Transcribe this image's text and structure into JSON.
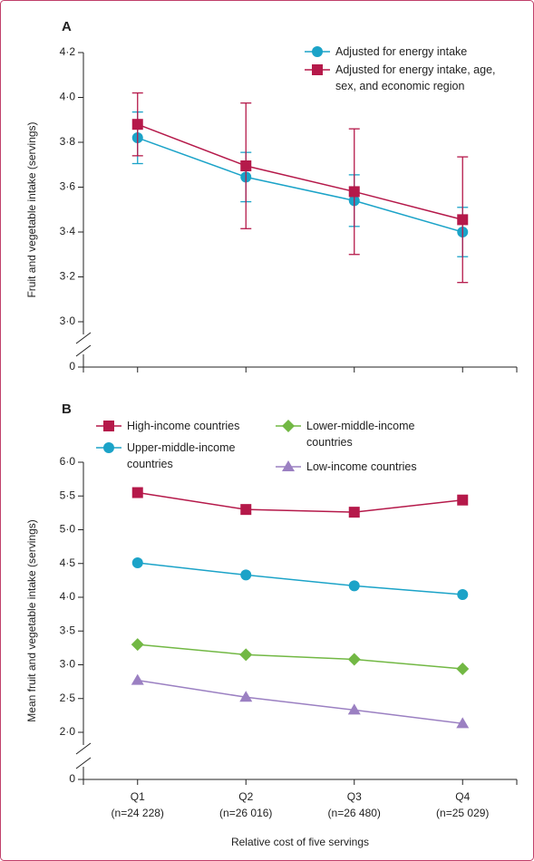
{
  "chart_data": [
    {
      "type": "line",
      "panel": "A",
      "ylabel": "Fruit and vegetable intake (servings)",
      "categories": [
        null,
        null,
        null,
        null
      ],
      "ylim": [
        0,
        4.2
      ],
      "axis_break": [
        0,
        3.0
      ],
      "yticks": [
        0,
        {
          "value": 3.0,
          "label": "3·0"
        },
        {
          "value": 3.2,
          "label": "3·2"
        },
        {
          "value": 3.4,
          "label": "3·4"
        },
        {
          "value": 3.6,
          "label": "3·6"
        },
        {
          "value": 3.8,
          "label": "3·8"
        },
        {
          "value": 4.0,
          "label": "4·0"
        },
        {
          "value": 4.2,
          "label": "4·2"
        }
      ],
      "series": [
        {
          "name": "Adjusted for energy intake",
          "color": "#1ba3c8",
          "marker": "circle",
          "values": [
            3.82,
            3.645,
            3.54,
            3.4
          ],
          "errors": [
            0.115,
            0.11,
            0.115,
            0.11
          ]
        },
        {
          "name": "Adjusted for energy intake, age, sex, and economic region",
          "color": "#b5194a",
          "marker": "square",
          "values": [
            3.88,
            3.695,
            3.58,
            3.455
          ],
          "errors": [
            0.14,
            0.28,
            0.28,
            0.28
          ]
        }
      ]
    },
    {
      "type": "line",
      "panel": "B",
      "ylabel": "Mean fruit and vegetable intake (servings)",
      "xlabel": "Relative cost of five servings",
      "categories": [
        "Q1",
        "Q2",
        "Q3",
        "Q4"
      ],
      "category_sublabels": [
        "(n=24 228)",
        "(n=26 016)",
        "(n=26 480)",
        "(n=25 029)"
      ],
      "ylim": [
        0,
        6.0
      ],
      "axis_break": [
        0,
        2.0
      ],
      "yticks": [
        0,
        {
          "value": 2.0,
          "label": "2·0"
        },
        {
          "value": 2.5,
          "label": "2·5"
        },
        {
          "value": 3.0,
          "label": "3·0"
        },
        {
          "value": 3.5,
          "label": "3·5"
        },
        {
          "value": 4.0,
          "label": "4·0"
        },
        {
          "value": 4.5,
          "label": "4·5"
        },
        {
          "value": 5.0,
          "label": "5·0"
        },
        {
          "value": 5.5,
          "label": "5·5"
        },
        {
          "value": 6.0,
          "label": "6·0"
        }
      ],
      "series": [
        {
          "name": "High-income countries",
          "color": "#b5194a",
          "marker": "square",
          "values": [
            5.55,
            5.3,
            5.26,
            5.44
          ]
        },
        {
          "name": "Upper-middle-income countries",
          "color": "#1ba3c8",
          "marker": "circle",
          "values": [
            4.51,
            4.33,
            4.17,
            4.04
          ]
        },
        {
          "name": "Lower-middle-income countries",
          "color": "#72b844",
          "marker": "diamond",
          "values": [
            3.3,
            3.15,
            3.08,
            2.94
          ]
        },
        {
          "name": "Low-income countries",
          "color": "#9b80c2",
          "marker": "triangle",
          "values": [
            2.77,
            2.52,
            2.33,
            2.13
          ]
        }
      ]
    }
  ]
}
